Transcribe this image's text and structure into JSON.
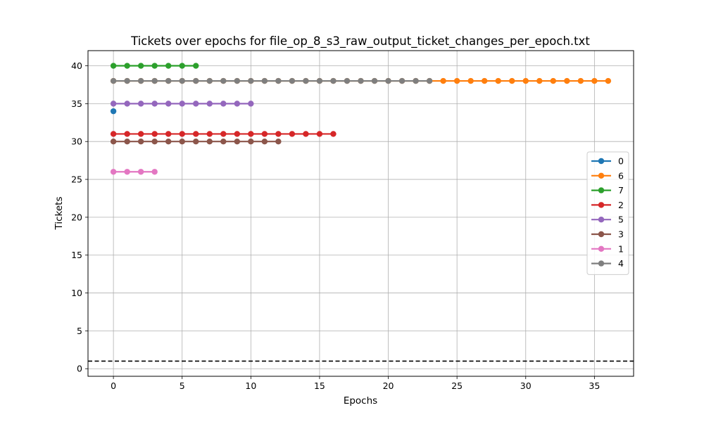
{
  "chart_data": {
    "type": "line",
    "title": "Tickets over epochs for file_op_8_s3_raw_output_ticket_changes_per_epoch.txt",
    "xlabel": "Epochs",
    "ylabel": "Tickets",
    "xlim": [
      -1.85,
      37.85
    ],
    "ylim": [
      -1.0,
      42.0
    ],
    "xticks": [
      0,
      5,
      10,
      15,
      20,
      25,
      30,
      35
    ],
    "yticks": [
      0,
      5,
      10,
      15,
      20,
      25,
      30,
      35,
      40
    ],
    "grid": true,
    "legend_position": "center-right",
    "reference_line": {
      "y": 1,
      "style": "dashed",
      "color": "#000000"
    },
    "series": [
      {
        "name": "0",
        "color": "#1f77b4",
        "x_start": 0,
        "x_end": 0,
        "y": 34
      },
      {
        "name": "6",
        "color": "#ff7f0e",
        "x_start": 0,
        "x_end": 36,
        "y": 38
      },
      {
        "name": "7",
        "color": "#2ca02c",
        "x_start": 0,
        "x_end": 6,
        "y": 40
      },
      {
        "name": "2",
        "color": "#d62728",
        "x_start": 0,
        "x_end": 16,
        "y": 31
      },
      {
        "name": "5",
        "color": "#9467bd",
        "x_start": 0,
        "x_end": 10,
        "y": 35
      },
      {
        "name": "3",
        "color": "#8c564b",
        "x_start": 0,
        "x_end": 12,
        "y": 30
      },
      {
        "name": "1",
        "color": "#e377c2",
        "x_start": 0,
        "x_end": 3,
        "y": 26
      },
      {
        "name": "4",
        "color": "#7f7f7f",
        "x_start": 0,
        "x_end": 23,
        "y": 38
      }
    ]
  }
}
